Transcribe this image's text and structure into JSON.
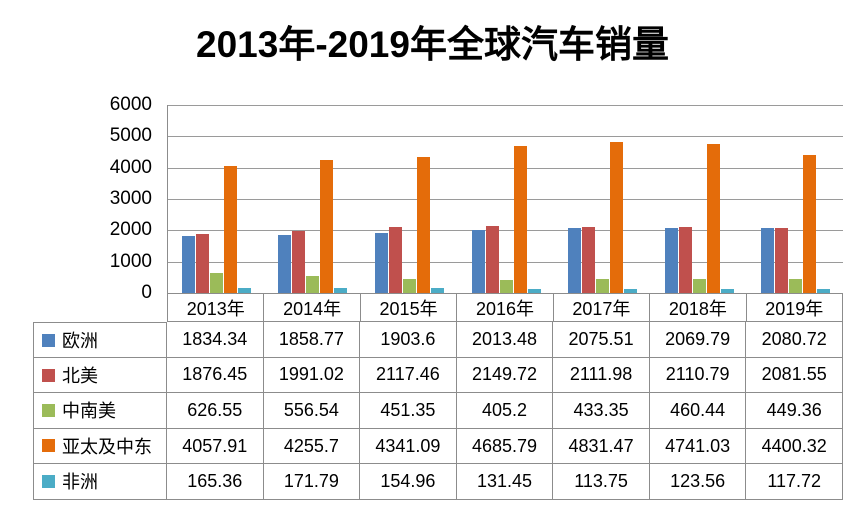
{
  "chart_data": {
    "type": "bar",
    "title": "2013年-2019年全球汽车销量",
    "categories": [
      "2013年",
      "2014年",
      "2015年",
      "2016年",
      "2017年",
      "2018年",
      "2019年"
    ],
    "series": [
      {
        "name": "欧洲",
        "color": "#4F81BD",
        "values": [
          1834.34,
          1858.77,
          1903.6,
          2013.48,
          2075.51,
          2069.79,
          2080.72
        ]
      },
      {
        "name": "北美",
        "color": "#C0504D",
        "values": [
          1876.45,
          1991.02,
          2117.46,
          2149.72,
          2111.98,
          2110.79,
          2081.55
        ]
      },
      {
        "name": "中南美",
        "color": "#9BBB59",
        "values": [
          626.55,
          556.54,
          451.35,
          405.2,
          433.35,
          460.44,
          449.36
        ]
      },
      {
        "name": "亚太及中东",
        "color": "#E46C0A",
        "values": [
          4057.91,
          4255.7,
          4341.09,
          4685.79,
          4831.47,
          4741.03,
          4400.32
        ]
      },
      {
        "name": "非洲",
        "color": "#4BACC6",
        "values": [
          165.36,
          171.79,
          154.96,
          131.45,
          113.75,
          123.56,
          117.72
        ]
      }
    ],
    "xlabel": "",
    "ylabel": "",
    "ylim": [
      0,
      6000
    ],
    "ytick_interval": 1000,
    "grid": true,
    "legend_position": "data-table-left",
    "colors": {
      "gridline": "#9a9a9a",
      "table_border": "#8c8c8c",
      "text": "#000000",
      "background": "#ffffff"
    }
  }
}
